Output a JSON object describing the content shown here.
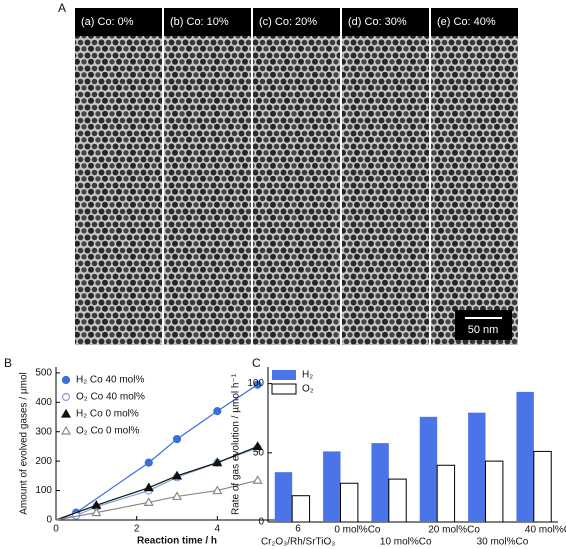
{
  "figure": {
    "panel_a": {
      "panel_label": "A",
      "panels": [
        "(a) Co: 0%",
        "(b) Co: 10%",
        "(c) Co: 20%",
        "(d) Co: 30%",
        "(e) Co: 40%"
      ],
      "scale_bar": "50 nm"
    }
  },
  "chart_data": [
    {
      "type": "scatter",
      "panel_label": "B",
      "xlabel": "Reaction time / h",
      "ylabel": "Amount of evolved gases / µmol",
      "xlim": [
        0,
        6
      ],
      "xticks": [
        0,
        2,
        4,
        6
      ],
      "ylim": [
        0,
        520
      ],
      "yticks": [
        0,
        100,
        200,
        300,
        400,
        500
      ],
      "legend": "upper left",
      "series": [
        {
          "name": "H₂ Co 40 mol%",
          "color": "#3b6fd8",
          "marker": "circle-filled",
          "x": [
            0,
            0.5,
            2.3,
            3,
            4,
            5
          ],
          "values": [
            0,
            25,
            195,
            275,
            370,
            460
          ]
        },
        {
          "name": "O₂ Co 40 mol%",
          "color": "#7da3d6",
          "marker": "circle-open",
          "x": [
            0,
            0.5,
            1,
            2.3,
            3,
            4,
            5
          ],
          "values": [
            0,
            15,
            45,
            100,
            145,
            195,
            245
          ]
        },
        {
          "name": "H₂ Co 0 mol%",
          "color": "#111111",
          "marker": "triangle-filled",
          "x": [
            0,
            1,
            2.3,
            3,
            4,
            5
          ],
          "values": [
            0,
            50,
            110,
            150,
            195,
            250
          ]
        },
        {
          "name": "O₂ Co 0 mol%",
          "color": "#8a8a8a",
          "marker": "triangle-open",
          "x": [
            0,
            1,
            2.3,
            3,
            4,
            5
          ],
          "values": [
            0,
            25,
            60,
            80,
            100,
            135
          ]
        }
      ]
    },
    {
      "type": "bar",
      "panel_label": "C",
      "ylabel": "Rate of gas evolution / µmol h⁻¹",
      "categories": [
        "Cr₂O₃/Rh/SrTiO₃",
        "0 mol%Co",
        "10 mol%Co",
        "20 mol%Co",
        "30 mol%Co",
        "40 mol%Co"
      ],
      "ylim": [
        0,
        112
      ],
      "yticks": [
        0,
        50,
        100
      ],
      "legend": "upper left",
      "series": [
        {
          "name": "H₂",
          "color": "#4a74e8",
          "values": [
            36,
            51,
            57,
            76,
            79,
            94
          ]
        },
        {
          "name": "O₂",
          "color": "#ffffff",
          "values": [
            19,
            28,
            31,
            41,
            44,
            51
          ]
        }
      ]
    }
  ]
}
